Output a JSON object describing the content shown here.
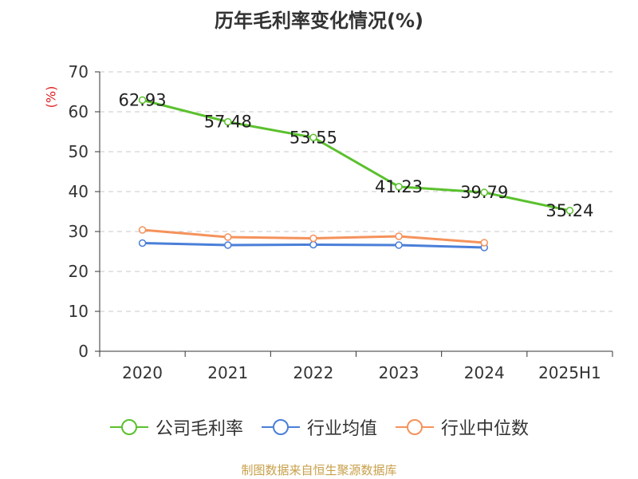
{
  "title": "历年毛利率变化情况(%)",
  "unit_label": "(%)",
  "source": "制图数据来自恒生聚源数据库",
  "chart_data": {
    "type": "line",
    "categories": [
      "2020",
      "2021",
      "2022",
      "2023",
      "2024",
      "2025H1"
    ],
    "ylim": [
      0,
      70
    ],
    "yticks": [
      0,
      10,
      20,
      30,
      40,
      50,
      60,
      70
    ],
    "grid": true,
    "legend_position": "bottom",
    "series": [
      {
        "name": "公司毛利率",
        "color": "#5ac12d",
        "values": [
          62.93,
          57.48,
          53.55,
          41.23,
          39.79,
          35.24
        ],
        "labels": [
          "62.93",
          "57.48",
          "53.55",
          "41.23",
          "39.79",
          "35.24"
        ]
      },
      {
        "name": "行业均值",
        "color": "#4a7fd8",
        "values": [
          27.1,
          26.6,
          26.7,
          26.6,
          26.0,
          null
        ]
      },
      {
        "name": "行业中位数",
        "color": "#f5925b",
        "values": [
          30.4,
          28.6,
          28.3,
          28.8,
          27.2,
          null
        ]
      }
    ]
  }
}
